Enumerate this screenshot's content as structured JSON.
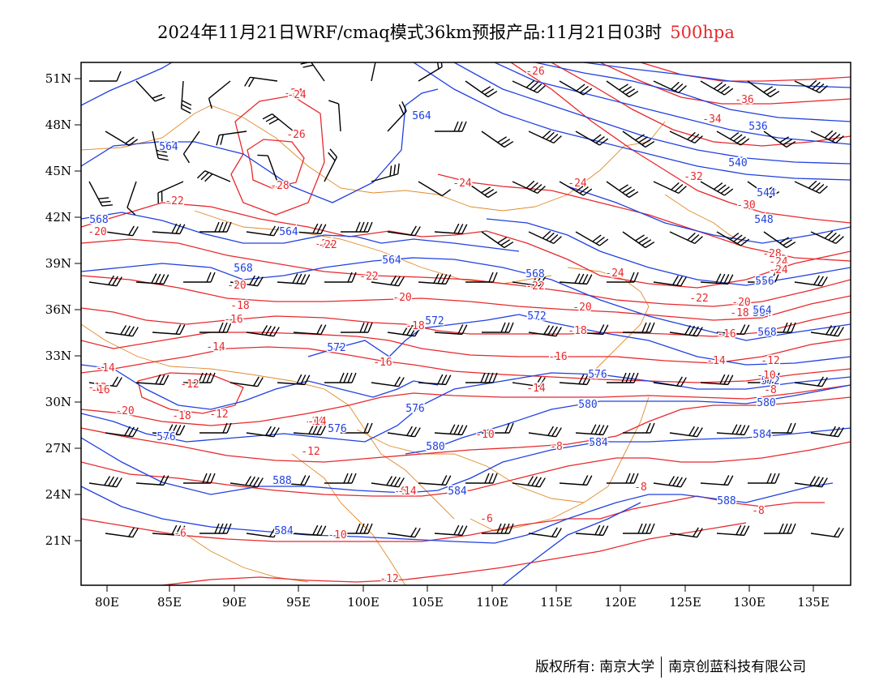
{
  "title": {
    "main": "2024年11月21日WRF/cmaq模式36km预报产品:11月21日03时",
    "level": "500hpa"
  },
  "axes": {
    "lon_ticks": [
      "80E",
      "85E",
      "90E",
      "95E",
      "100E",
      "105E",
      "110E",
      "115E",
      "120E",
      "125E",
      "130E",
      "135E"
    ],
    "lat_ticks": [
      "51N",
      "48N",
      "45N",
      "42N",
      "39N",
      "36N",
      "33N",
      "30N",
      "27N",
      "24N",
      "21N"
    ]
  },
  "colors": {
    "height": "#2040e0",
    "temperature": "#e8282c",
    "border": "#e08a2a",
    "wind": "#000000"
  },
  "height_labels": [
    "564",
    "564",
    "568",
    "564",
    "568",
    "564",
    "568",
    "572",
    "572",
    "572",
    "576",
    "576",
    "580",
    "584",
    "584",
    "588",
    "576",
    "584",
    "580",
    "584",
    "588",
    "584",
    "576",
    "580",
    "568",
    "564",
    "556",
    "548",
    "544",
    "540",
    "536",
    "572"
  ],
  "temperature_labels": [
    "-24",
    "-26",
    "-28",
    "-24",
    "-22",
    "-20",
    "-24",
    "-22",
    "-20",
    "-18",
    "-16",
    "-14",
    "-12",
    "-12",
    "-10",
    "-12",
    "-14",
    "-16",
    "-18",
    "-20",
    "-22",
    "-24",
    "-26",
    "-36",
    "-34",
    "-32",
    "-24",
    "-30",
    "-28",
    "-24",
    "-24",
    "-22",
    "-20",
    "-18",
    "-16",
    "-14",
    "-12",
    "-10",
    "-8",
    "-20",
    "-18",
    "-16",
    "-14",
    "-14",
    "-12",
    "-10",
    "-8",
    "-6",
    "-6",
    "-8",
    "-6",
    "-8",
    "-10",
    "-12",
    "-14",
    "-14",
    "-16",
    "-18",
    "-20",
    "-22",
    "-24"
  ],
  "credits": {
    "left": "版权所有: 南京大学",
    "right": "南京创蓝科技有限公司"
  }
}
